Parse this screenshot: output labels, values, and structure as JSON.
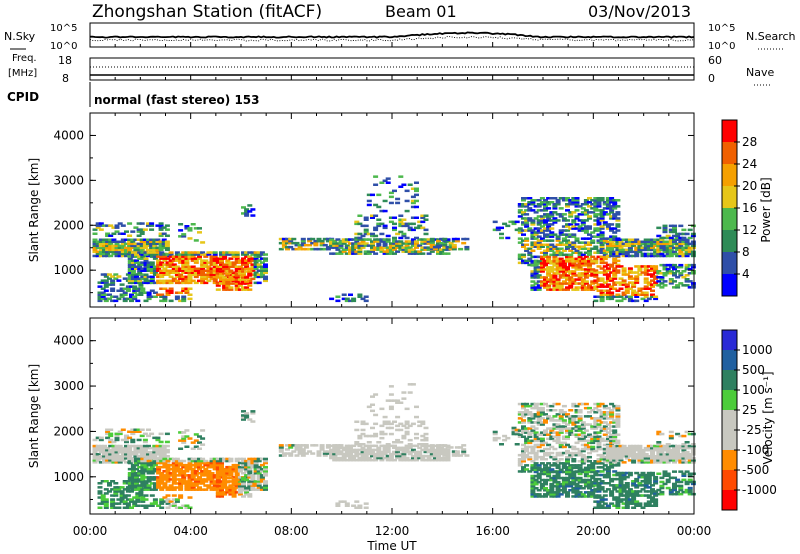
{
  "header": {
    "station": "Zhongshan Station (fitACF)",
    "beam": "Beam 01",
    "date": "03/Nov/2013"
  },
  "labels": {
    "nsky": "N.Sky",
    "nsearch": "N.Search",
    "freq_top": "Freq.",
    "freq_unit": "[MHz]",
    "nave": "Nave",
    "cpid": "CPID",
    "cpid_value": "normal (fast stereo) 153"
  },
  "noise_ticks": {
    "left_top": "10^5",
    "left_bottom": "10^0",
    "right_top": "10^5",
    "right_bottom": "10^0"
  },
  "freq_ticks": {
    "left_top": "18",
    "left_bottom": "8",
    "right_top": "60",
    "right_bottom": "0"
  },
  "colors": {
    "power": [
      "#0000ff",
      "#2f4fa8",
      "#2e8b57",
      "#4db84d",
      "#e6c619",
      "#f5a000",
      "#f06000",
      "#ff0000"
    ],
    "velocity": [
      "#ff0000",
      "#ff4a00",
      "#ff8c00",
      "#c8c8c0",
      "#c8c8c0",
      "#4ccc3a",
      "#2f8060",
      "#2060a0",
      "#2a2ad6"
    ]
  },
  "chart_data": [
    {
      "type": "heatmap",
      "panel": "power",
      "ylabel": "Slant Range [km]",
      "colorbar_label": "Power [dB]",
      "colorbar_ticks": [
        "4",
        "8",
        "12",
        "16",
        "20",
        "24",
        "28"
      ],
      "yticks": [
        "1000",
        "2000",
        "3000",
        "4000"
      ],
      "ylim": [
        180,
        4500
      ],
      "xlim_hours": [
        0,
        24
      ]
    },
    {
      "type": "heatmap",
      "panel": "velocity",
      "ylabel": "Slant Range [km]",
      "colorbar_label": "Velocity [m s⁻¹]",
      "colorbar_ticks": [
        "1000",
        "500",
        "100",
        "25",
        "-25",
        "-100",
        "-500",
        "-1000"
      ],
      "yticks": [
        "1000",
        "2000",
        "3000",
        "4000"
      ],
      "ylim": [
        180,
        4500
      ],
      "xlim_hours": [
        0,
        24
      ]
    }
  ],
  "xaxis": {
    "ticks": [
      "00:00",
      "04:00",
      "08:00",
      "12:00",
      "16:00",
      "20:00",
      "00:00"
    ],
    "label": "Time UT"
  }
}
